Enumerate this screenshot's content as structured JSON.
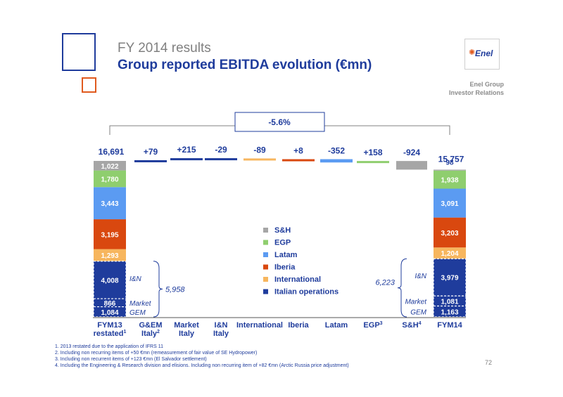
{
  "header": {
    "subtitle": "FY 2014 results",
    "title": "Group reported EBITDA evolution (€mn)",
    "logo_text": "Enel",
    "corp_line1": "Enel Group",
    "corp_line2": "Investor Relations"
  },
  "footnotes": [
    "1. 2013 restated due to the application of IFRS 11",
    "2. Including non recurring items of +50 €mn (remeasurement of fair value of SE Hydropower)",
    "3. Including non recurrent items of +123 €mn (El Salvador settlement)",
    "4. Including the Engineering & Research division and elisions. Including non recurring item of +82 €mn (Arctic Russia price adjustment)"
  ],
  "page_number": "72",
  "colors": {
    "sh": "#a6a6a6",
    "egp": "#8fce6e",
    "latam": "#5b9bf2",
    "iberia": "#d9480f",
    "international": "#f7b65e",
    "italian": "#1f3c9c",
    "delta_bar": "#1f3c9c"
  },
  "chart_data": {
    "type": "bar",
    "subtype": "waterfall",
    "categories": [
      "FYM13 restated",
      "G&EM Italy",
      "Market Italy",
      "I&N Italy",
      "International",
      "Iberia",
      "Latam",
      "EGP",
      "S&H",
      "FYM14"
    ],
    "category_lines": [
      {
        "l1": "FYM13",
        "l2": "restated",
        "sup": "1"
      },
      {
        "l1": "G&EM",
        "l2": "Italy",
        "sup": "2"
      },
      {
        "l1": "Market",
        "l2": "Italy",
        "sup": ""
      },
      {
        "l1": "I&N",
        "l2": "Italy",
        "sup": ""
      },
      {
        "l1": "International",
        "l2": "",
        "sup": ""
      },
      {
        "l1": "Iberia",
        "l2": "",
        "sup": ""
      },
      {
        "l1": "Latam",
        "l2": "",
        "sup": ""
      },
      {
        "l1": "EGP",
        "l2": "",
        "sup": "3"
      },
      {
        "l1": "S&H",
        "l2": "",
        "sup": "4"
      },
      {
        "l1": "FYM14",
        "l2": "",
        "sup": ""
      }
    ],
    "legend": [
      {
        "name": "S&H",
        "color_key": "sh"
      },
      {
        "name": "EGP",
        "color_key": "egp"
      },
      {
        "name": "Latam",
        "color_key": "latam"
      },
      {
        "name": "Iberia",
        "color_key": "iberia"
      },
      {
        "name": "International",
        "color_key": "international"
      },
      {
        "name": "Italian operations",
        "color_key": "italian"
      }
    ],
    "start": {
      "total_label": "16,691",
      "total": 16691,
      "segments": [
        {
          "name": "GEM",
          "value": 1084,
          "label": "1,084",
          "color_key": "italian",
          "side_label": "GEM"
        },
        {
          "name": "Market",
          "value": 866,
          "label": "866",
          "color_key": "italian",
          "side_label": "Market"
        },
        {
          "name": "I&N",
          "value": 4008,
          "label": "4,008",
          "color_key": "italian",
          "side_label": "I&N"
        },
        {
          "name": "International",
          "value": 1293,
          "label": "1,293",
          "color_key": "international",
          "side_label": ""
        },
        {
          "name": "Iberia",
          "value": 3195,
          "label": "3,195",
          "color_key": "iberia",
          "side_label": ""
        },
        {
          "name": "Latam",
          "value": 3443,
          "label": "3,443",
          "color_key": "latam",
          "side_label": ""
        },
        {
          "name": "EGP",
          "value": 1780,
          "label": "1,780",
          "color_key": "egp",
          "side_label": ""
        },
        {
          "name": "S&H",
          "value": 1022,
          "label": "1,022",
          "color_key": "sh",
          "side_label": ""
        }
      ],
      "bracket_total": "5,958"
    },
    "deltas": [
      {
        "category": "G&EM Italy",
        "value": 79,
        "label": "+79",
        "color_key": "italian"
      },
      {
        "category": "Market Italy",
        "value": 215,
        "label": "+215",
        "color_key": "italian"
      },
      {
        "category": "I&N Italy",
        "value": -29,
        "label": "-29",
        "color_key": "italian"
      },
      {
        "category": "International",
        "value": -89,
        "label": "-89",
        "color_key": "international"
      },
      {
        "category": "Iberia",
        "value": 8,
        "label": "+8",
        "color_key": "iberia"
      },
      {
        "category": "Latam",
        "value": -352,
        "label": "-352",
        "color_key": "latam"
      },
      {
        "category": "EGP",
        "value": 158,
        "label": "+158",
        "color_key": "egp"
      },
      {
        "category": "S&H",
        "value": -924,
        "label": "-924",
        "color_key": "sh"
      }
    ],
    "end": {
      "total_label": "15,757",
      "total": 15757,
      "segments": [
        {
          "name": "GEM",
          "value": 1163,
          "label": "1,163",
          "color_key": "italian",
          "side_label": "GEM"
        },
        {
          "name": "Market",
          "value": 1081,
          "label": "1,081",
          "color_key": "italian",
          "side_label": "Market"
        },
        {
          "name": "I&N",
          "value": 3979,
          "label": "3,979",
          "color_key": "italian",
          "side_label": "I&N"
        },
        {
          "name": "International",
          "value": 1204,
          "label": "1,204",
          "color_key": "international",
          "side_label": ""
        },
        {
          "name": "Iberia",
          "value": 3203,
          "label": "3,203",
          "color_key": "iberia",
          "side_label": ""
        },
        {
          "name": "Latam",
          "value": 3091,
          "label": "3,091",
          "color_key": "latam",
          "side_label": ""
        },
        {
          "name": "EGP",
          "value": 1938,
          "label": "1,938",
          "color_key": "egp",
          "side_label": ""
        },
        {
          "name": "S&H",
          "value": 98,
          "label": "98",
          "color_key": "sh",
          "side_label": ""
        }
      ],
      "bracket_total": "6,223"
    },
    "change_label": "-5.6%"
  }
}
